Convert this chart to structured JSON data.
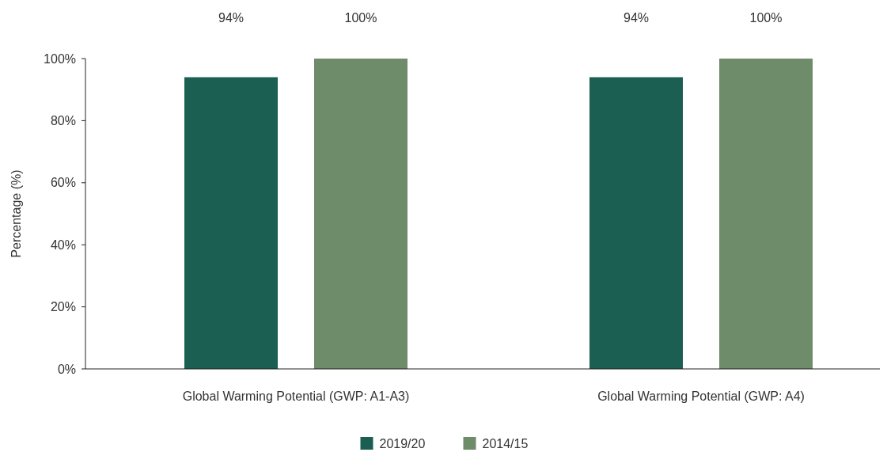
{
  "chart_data": {
    "type": "bar",
    "ylabel": "Percentage (%)",
    "categories": [
      "Global Warming Potential (GWP: A1-A3)",
      "Global Warming Potential (GWP: A4)"
    ],
    "series": [
      {
        "name": "2019/20",
        "color": "#1b5e52",
        "values": [
          94,
          94
        ]
      },
      {
        "name": "2014/15",
        "color": "#6e8b6a",
        "values": [
          100,
          100
        ]
      }
    ],
    "ylim": [
      0,
      100
    ],
    "yticks": [
      {
        "value": 0,
        "label": "0%"
      },
      {
        "value": 20,
        "label": "20%"
      },
      {
        "value": 40,
        "label": "40%"
      },
      {
        "value": 60,
        "label": "60%"
      },
      {
        "value": 80,
        "label": "80%"
      },
      {
        "value": 100,
        "label": "100%"
      }
    ],
    "value_labels": [
      [
        "94%",
        "94%"
      ],
      [
        "100%",
        "100%"
      ]
    ],
    "grid": false,
    "legend": "bottom"
  }
}
